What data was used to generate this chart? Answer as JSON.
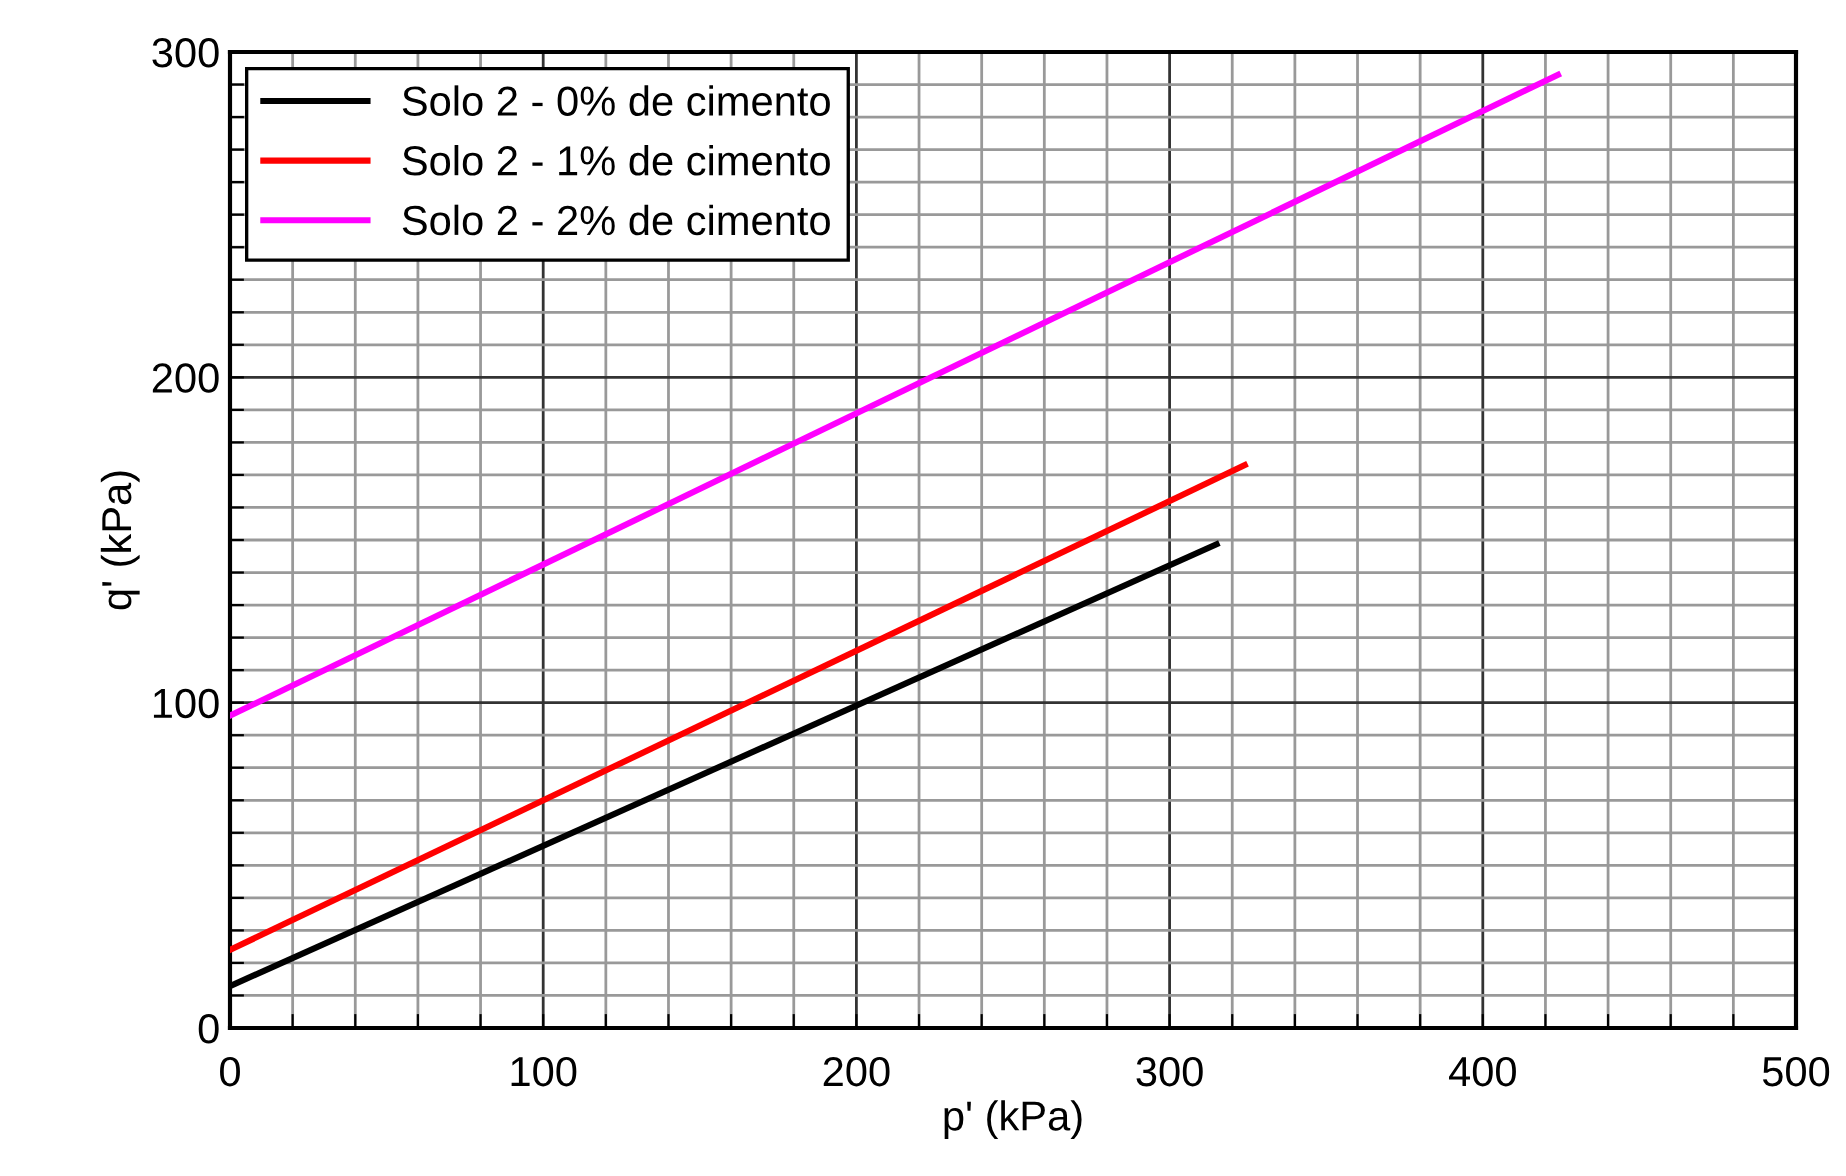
{
  "chart_data": {
    "type": "line",
    "xlabel": "p' (kPa)",
    "ylabel": "q' (kPa)",
    "series": [
      {
        "name": "Solo 2 - 0% de cimento",
        "color": "#000000",
        "x": [
          0,
          315
        ],
        "values": [
          12.9,
          148.7
        ]
      },
      {
        "name": "Solo 2 - 1% de cimento",
        "color": "#ff0000",
        "x": [
          0,
          324
        ],
        "values": [
          24,
          173
        ]
      },
      {
        "name": "Solo 2 - 2% de cimento",
        "color": "#ff00ff",
        "x": [
          0,
          424
        ],
        "values": [
          96,
          293
        ]
      }
    ],
    "xlim": [
      0,
      500
    ],
    "ylim": [
      0,
      300
    ],
    "xticks": [
      0,
      {
        "value": 20,
        "label": null
      },
      {
        "value": 40,
        "label": null
      },
      {
        "value": 60,
        "label": null
      },
      {
        "value": 80,
        "label": null
      },
      100,
      {
        "value": 120,
        "label": null
      },
      {
        "value": 140,
        "label": null
      },
      {
        "value": 160,
        "label": null
      },
      {
        "value": 180,
        "label": null
      },
      200,
      {
        "value": 220,
        "label": null
      },
      {
        "value": 240,
        "label": null
      },
      {
        "value": 260,
        "label": null
      },
      {
        "value": 280,
        "label": null
      },
      300,
      {
        "value": 320,
        "label": null
      },
      {
        "value": 340,
        "label": null
      },
      {
        "value": 360,
        "label": null
      },
      {
        "value": 380,
        "label": null
      },
      400,
      {
        "value": 420,
        "label": null
      },
      {
        "value": 440,
        "label": null
      },
      {
        "value": 460,
        "label": null
      },
      {
        "value": 480,
        "label": null
      },
      500
    ],
    "yticks": [
      0,
      {
        "value": 10,
        "label": null
      },
      {
        "value": 20,
        "label": null
      },
      {
        "value": 30,
        "label": null
      },
      {
        "value": 40,
        "label": null
      },
      {
        "value": 50,
        "label": null
      },
      {
        "value": 60,
        "label": null
      },
      {
        "value": 70,
        "label": null
      },
      {
        "value": 80,
        "label": null
      },
      {
        "value": 90,
        "label": null
      },
      100,
      {
        "value": 110,
        "label": null
      },
      {
        "value": 120,
        "label": null
      },
      {
        "value": 130,
        "label": null
      },
      {
        "value": 140,
        "label": null
      },
      {
        "value": 150,
        "label": null
      },
      {
        "value": 160,
        "label": null
      },
      {
        "value": 170,
        "label": null
      },
      {
        "value": 180,
        "label": null
      },
      {
        "value": 190,
        "label": null
      },
      200,
      {
        "value": 210,
        "label": null
      },
      {
        "value": 220,
        "label": null
      },
      {
        "value": 230,
        "label": null
      },
      {
        "value": 240,
        "label": null
      },
      {
        "value": 250,
        "label": null
      },
      {
        "value": 260,
        "label": null
      },
      {
        "value": 270,
        "label": null
      },
      {
        "value": 280,
        "label": null
      },
      {
        "value": 290,
        "label": null
      },
      300
    ],
    "grid": true,
    "legend": "top left",
    "line_style": "solid",
    "marker": "none"
  }
}
